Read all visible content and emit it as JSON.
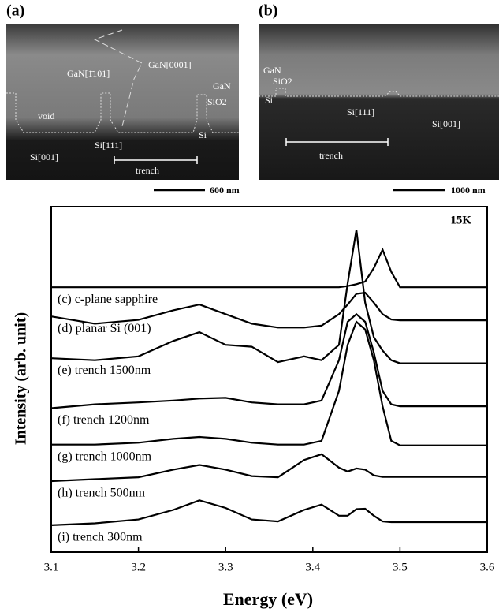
{
  "panels": [
    {
      "label": "(a)",
      "scale_bar": "600 nm",
      "texts": [
        "GaN[1̄101]",
        "GaN[0001]",
        "GaN",
        "SiO2",
        "void",
        "Si",
        "Si[001]",
        "Si[111]",
        "trench"
      ]
    },
    {
      "label": "(b)",
      "scale_bar": "1000 nm",
      "texts": [
        "GaN",
        "SiO2",
        "Si",
        "Si[111]",
        "Si[001]",
        "trench"
      ]
    }
  ],
  "chart_data": {
    "type": "line",
    "annotation": "15K",
    "xlabel": "Energy (eV)",
    "ylabel": "Intensity (arb. unit)",
    "x": [
      3.1,
      3.15,
      3.2,
      3.24,
      3.27,
      3.3,
      3.33,
      3.36,
      3.39,
      3.41,
      3.43,
      3.44,
      3.45,
      3.46,
      3.47,
      3.48,
      3.49,
      3.5,
      3.55,
      3.6
    ],
    "xlim": [
      3.1,
      3.6
    ],
    "xticks": [
      3.1,
      3.2,
      3.3,
      3.4,
      3.5,
      3.6
    ],
    "ylim": [
      10,
      100
    ],
    "series": [
      {
        "name": "(c) c-plane sapphire",
        "color": "#000000",
        "values": [
          79,
          79,
          79,
          79,
          79,
          79,
          79,
          79,
          79,
          79,
          79,
          79.3,
          79.8,
          80.5,
          84,
          88.8,
          83,
          79,
          79,
          79
        ]
      },
      {
        "name": "(d) planar Si (001)",
        "color": "#000000",
        "values": [
          71.4,
          69.5,
          70.5,
          73,
          74.5,
          72,
          69.5,
          68.5,
          68.5,
          69,
          72,
          74.5,
          77.3,
          77.6,
          75,
          72,
          70.6,
          70.4,
          70.4,
          70.4
        ]
      },
      {
        "name": "(e) trench 1500nm",
        "color": "#000000",
        "values": [
          60.5,
          60,
          61,
          65,
          67.3,
          64,
          63.5,
          59.5,
          61,
          60,
          64,
          80,
          94,
          75,
          66,
          62.5,
          60,
          59.2,
          59.2,
          59.2
        ]
      },
      {
        "name": "(f) trench 1200nm",
        "color": "#000000",
        "values": [
          47.5,
          48.5,
          49,
          49.5,
          50,
          50.2,
          49,
          48.5,
          48.5,
          49.5,
          60,
          70,
          72,
          70,
          62,
          52,
          48.5,
          48,
          48,
          48
        ]
      },
      {
        "name": "(g) trench 1000nm",
        "color": "#000000",
        "values": [
          38,
          38,
          38.5,
          39.5,
          40,
          39.5,
          38.5,
          38,
          38,
          39,
          52,
          64,
          70,
          68,
          60,
          48,
          39,
          37.8,
          37.8,
          37.8
        ]
      },
      {
        "name": "(h) trench 500nm",
        "color": "#000000",
        "values": [
          28.5,
          29,
          29.5,
          31.5,
          32.7,
          31.5,
          29.8,
          29.5,
          34,
          35.5,
          32,
          31,
          31.8,
          31.5,
          30,
          29.6,
          29.6,
          29.6,
          29.6,
          29.6
        ]
      },
      {
        "name": "(i) trench 300nm",
        "color": "#000000",
        "values": [
          17,
          17.5,
          18.5,
          21,
          23.5,
          21.5,
          18.5,
          18,
          21,
          22.4,
          19.5,
          19.5,
          21.2,
          21.3,
          19.5,
          18,
          17.8,
          17.8,
          17.8,
          17.8
        ]
      }
    ]
  }
}
